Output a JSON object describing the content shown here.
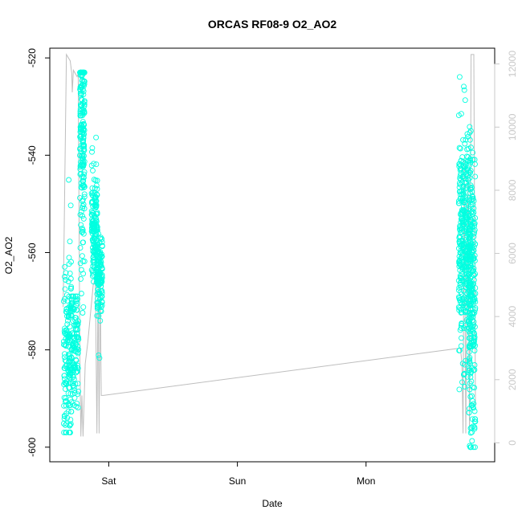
{
  "chart_data": {
    "type": "scatter",
    "title": "ORCAS RF08-9 O2_AO2",
    "xlabel": "Date",
    "ylabel": "O2_AO2",
    "x_ticks": [
      "Sat",
      "Sun",
      "Mon"
    ],
    "y_ticks": [
      "-520",
      "-540",
      "-560",
      "-580",
      "-600"
    ],
    "y_ticks_right": [
      "0",
      "2000",
      "4000",
      "6000",
      "8000",
      "10000",
      "12000"
    ],
    "ylim": [
      -603,
      -518
    ],
    "y2lim": [
      -600,
      12500
    ],
    "x_tick_hours": [
      24,
      48,
      72
    ],
    "xlim_hours": [
      13,
      96
    ],
    "colors": {
      "points": "#00ffe0",
      "line": "#bebebe",
      "right_axis": "#c8c8c8"
    },
    "series": [
      {
        "kind": "points",
        "clusters": [
          {
            "x0": 15.6,
            "x1": 17.0,
            "ymin": -597,
            "ymax": -539,
            "center": -582,
            "spread": 10,
            "n": 150
          },
          {
            "x0": 17.0,
            "x1": 18.4,
            "ymin": -593,
            "ymax": -569,
            "center": -578,
            "spread": 6,
            "n": 120
          },
          {
            "x0": 18.6,
            "x1": 19.5,
            "ymin": -573,
            "ymax": -523,
            "center": -532,
            "spread": 12,
            "n": 220
          },
          {
            "x0": 20.8,
            "x1": 21.9,
            "ymin": -566,
            "ymax": -535,
            "center": -556,
            "spread": 6,
            "n": 160
          },
          {
            "x0": 21.8,
            "x1": 22.8,
            "ymin": -583,
            "ymax": -555,
            "center": -565,
            "spread": 4,
            "n": 130
          },
          {
            "x0": 89.3,
            "x1": 91.6,
            "ymin": -590,
            "ymax": -522,
            "center": -557,
            "spread": 11,
            "n": 380
          },
          {
            "x0": 91.2,
            "x1": 92.4,
            "ymin": -600,
            "ymax": -535,
            "center": -570,
            "spread": 14,
            "n": 220
          }
        ]
      },
      {
        "kind": "line",
        "axis": "right",
        "points": [
          [
            15.5,
            4300
          ],
          [
            16.1,
            12300
          ],
          [
            16.8,
            12100
          ],
          [
            17.1,
            11700
          ],
          [
            17.2,
            11100
          ],
          [
            17.4,
            11800
          ],
          [
            18.1,
            11600
          ],
          [
            18.3,
            11700
          ],
          [
            18.6,
            2800
          ],
          [
            18.8,
            200
          ],
          [
            19.0,
            1500
          ],
          [
            19.2,
            200
          ],
          [
            19.4,
            1300
          ],
          [
            19.6,
            2500
          ],
          [
            20.1,
            3200
          ],
          [
            20.6,
            4100
          ],
          [
            21.1,
            5000
          ],
          [
            21.5,
            5200
          ],
          [
            21.8,
            300
          ],
          [
            22.0,
            5200
          ],
          [
            22.2,
            300
          ],
          [
            22.4,
            5100
          ],
          [
            22.6,
            1500
          ],
          [
            23.0,
            1500
          ],
          [
            89.6,
            3000
          ],
          [
            89.9,
            2500
          ],
          [
            90.1,
            300
          ],
          [
            90.3,
            9000
          ],
          [
            90.6,
            300
          ],
          [
            91.0,
            8600
          ],
          [
            91.3,
            300
          ],
          [
            91.6,
            12300
          ],
          [
            92.1,
            12300
          ],
          [
            92.4,
            1200
          ]
        ]
      }
    ]
  }
}
